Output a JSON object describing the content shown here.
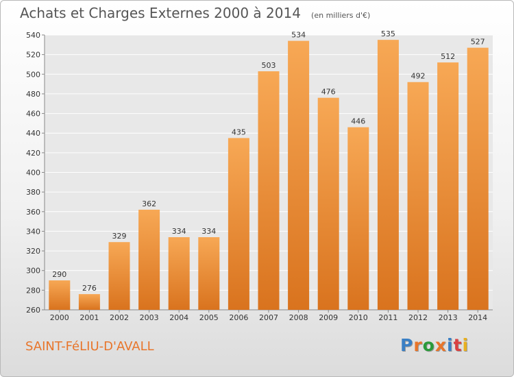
{
  "chart_data": {
    "type": "bar",
    "title": "Achats et Charges Externes 2000 à 2014",
    "subtitle": "(en milliers d'€)",
    "categories": [
      "2000",
      "2001",
      "2002",
      "2003",
      "2004",
      "2005",
      "2006",
      "2007",
      "2008",
      "2009",
      "2010",
      "2011",
      "2012",
      "2013",
      "2014"
    ],
    "values": [
      290,
      276,
      329,
      362,
      334,
      334,
      435,
      503,
      534,
      476,
      446,
      535,
      492,
      512,
      527
    ],
    "ylim": [
      260,
      540
    ],
    "yticks": [
      260,
      280,
      300,
      320,
      340,
      360,
      380,
      400,
      420,
      440,
      460,
      480,
      500,
      520,
      540
    ],
    "grid": true,
    "bar_color_top": "#f7a855",
    "bar_color_bottom": "#d9731e"
  },
  "footer": {
    "commune": "SAINT-FéLIU-D'AVALL",
    "brand": "Proxiti",
    "brand_colors": [
      "#3a7fc4",
      "#e8752a",
      "#2a9a3a",
      "#e8752a",
      "#3a7fc4",
      "#d94040",
      "#e8b020"
    ]
  }
}
